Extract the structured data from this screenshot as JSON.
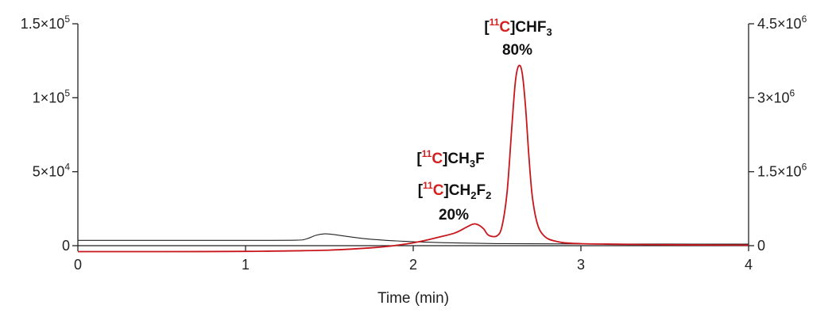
{
  "chart_data": {
    "type": "line",
    "xlabel": "Time (min)",
    "xlim": [
      0,
      4
    ],
    "x_ticks": [
      "0",
      "1",
      "2",
      "3",
      "4"
    ],
    "y_left": {
      "lim": [
        0,
        150000
      ],
      "ticks": [
        0,
        50000,
        100000,
        150000
      ],
      "tick_labels": [
        {
          "base": "0",
          "exp": ""
        },
        {
          "base": "5×10",
          "exp": "4"
        },
        {
          "base": "1×10",
          "exp": "5"
        },
        {
          "base": "1.5×10",
          "exp": "5"
        }
      ]
    },
    "y_right": {
      "lim": [
        0,
        4500000
      ],
      "ticks": [
        0,
        1500000,
        3000000,
        4500000
      ],
      "tick_labels": [
        {
          "base": "0",
          "exp": ""
        },
        {
          "base": "1.5×10",
          "exp": "6"
        },
        {
          "base": "3×10",
          "exp": "6"
        },
        {
          "base": "4.5×10",
          "exp": "6"
        }
      ]
    },
    "series": [
      {
        "color": "#222222",
        "axis": "left",
        "x": [
          0,
          0.5,
          1.0,
          1.3,
          1.36,
          1.42,
          1.47,
          1.52,
          1.6,
          1.7,
          1.8,
          1.9,
          2.0,
          2.2,
          2.5,
          3.0,
          3.5,
          4.0
        ],
        "y": [
          3600,
          3600,
          3600,
          3700,
          4500,
          7000,
          8000,
          7600,
          6300,
          4900,
          3900,
          3200,
          2700,
          2000,
          1400,
          1200,
          1100,
          1000
        ]
      },
      {
        "color": "#c8161d",
        "axis": "right",
        "x": [
          0,
          0.5,
          1.0,
          1.5,
          1.8,
          1.95,
          2.05,
          2.15,
          2.25,
          2.32,
          2.36,
          2.39,
          2.42,
          2.45,
          2.5,
          2.53,
          2.56,
          2.59,
          2.61,
          2.63,
          2.65,
          2.67,
          2.69,
          2.71,
          2.74,
          2.78,
          2.85,
          3.0,
          3.5,
          4.0
        ],
        "y": [
          -120000,
          -120000,
          -115000,
          -90000,
          -30000,
          30000,
          90000,
          170000,
          260000,
          380000,
          440000,
          420000,
          340000,
          210000,
          200000,
          400000,
          1100000,
          2500000,
          3350000,
          3650000,
          3500000,
          2800000,
          1800000,
          1000000,
          450000,
          200000,
          90000,
          40000,
          20000,
          10000
        ]
      }
    ],
    "annotations": [
      {
        "lead": "[",
        "iso": "11",
        "iso_el": "C",
        "tail": "]CHF",
        "sub": "3",
        "tail2": "",
        "sub2": ""
      },
      {
        "value": "80%"
      },
      {
        "lead": "[",
        "iso": "11",
        "iso_el": "C",
        "tail": "]CH",
        "sub": "3",
        "tail2": "F",
        "sub2": ""
      },
      {
        "lead": "[",
        "iso": "11",
        "iso_el": "C",
        "tail": "]CH",
        "sub": "2",
        "tail2": "F",
        "sub2": "2"
      },
      {
        "value": "20%"
      }
    ]
  }
}
